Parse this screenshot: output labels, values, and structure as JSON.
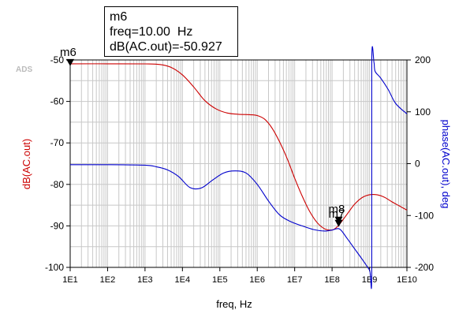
{
  "watermark": "ADS",
  "marker_readout": {
    "name": "m6",
    "freq_line": "freq=10.00  Hz",
    "value_line": "dB(AC.out)=-50.927"
  },
  "colors": {
    "mag": "#cc0000",
    "phase": "#0000cc",
    "grid": "#c8c8c8",
    "axis": "#000000"
  },
  "chart_data": {
    "type": "line",
    "xlabel": "freq, Hz",
    "ylabel_left": "dB(AC.out)",
    "ylabel_right": "phase(AC.out), deg",
    "x_scale": "log",
    "xlim": [
      10,
      10000000000
    ],
    "ylim_left": [
      -100,
      -50
    ],
    "ylim_right": [
      -200,
      200
    ],
    "x_ticks": [
      "1E1",
      "1E2",
      "1E3",
      "1E4",
      "1E5",
      "1E6",
      "1E7",
      "1E8",
      "1E9",
      "1E10"
    ],
    "y_ticks_left": [
      "-50",
      "-60",
      "-70",
      "-80",
      "-90",
      "-100"
    ],
    "y_ticks_right": [
      "200",
      "100",
      "0",
      "-100",
      "-200"
    ],
    "grid": true,
    "series": [
      {
        "name": "dB(AC.out)",
        "axis": "left",
        "x_log10": [
          1,
          2,
          3,
          3.4,
          3.7,
          4,
          4.3,
          4.6,
          4.9,
          5.2,
          5.5,
          5.8,
          6,
          6.2,
          6.4,
          6.6,
          6.8,
          7,
          7.2,
          7.4,
          7.6,
          7.8,
          8,
          8.1,
          8.2,
          8.4,
          8.6,
          8.8,
          9,
          9.2,
          9.4,
          9.6,
          9.8,
          10
        ],
        "y": [
          -50.93,
          -50.93,
          -50.95,
          -51.1,
          -51.8,
          -53.6,
          -56.5,
          -59.8,
          -61.8,
          -62.8,
          -63.1,
          -63.2,
          -63.4,
          -64.3,
          -66.5,
          -69.8,
          -73.8,
          -78.5,
          -82.8,
          -86.5,
          -89.2,
          -90.7,
          -91.0,
          -90.5,
          -89.6,
          -87.2,
          -84.8,
          -83.2,
          -82.5,
          -82.5,
          -83.1,
          -84.2,
          -85.2,
          -86.2
        ]
      },
      {
        "name": "phase(AC.out), deg",
        "axis": "right",
        "x_log10": [
          1,
          2,
          3,
          3.3,
          3.6,
          3.9,
          4.2,
          4.5,
          4.8,
          5.1,
          5.4,
          5.7,
          6,
          6.3,
          6.6,
          6.9,
          7.2,
          7.5,
          7.8,
          8,
          8.2,
          8.4,
          8.6,
          8.8,
          9,
          9.06,
          9.06,
          9.12,
          9.15,
          9.3,
          9.5,
          9.7,
          10
        ],
        "y": [
          -2,
          -2,
          -3,
          -6,
          -12,
          -25,
          -46,
          -47,
          -32,
          -18,
          -14,
          -18,
          -40,
          -72,
          -99,
          -112,
          -120,
          -127,
          -130,
          -128,
          -126,
          -144,
          -164,
          -184,
          -205,
          -212,
          195,
          195,
          178,
          165,
          143,
          116,
          96
        ]
      }
    ],
    "markers": [
      {
        "label": "m6",
        "x": 10,
        "y": -50.927,
        "axis": "left"
      },
      {
        "label": "m8",
        "x": 150000000,
        "y": -89.5,
        "axis": "left"
      },
      {
        "label": "m7",
        "x": 150000000,
        "axis": "right"
      }
    ]
  }
}
